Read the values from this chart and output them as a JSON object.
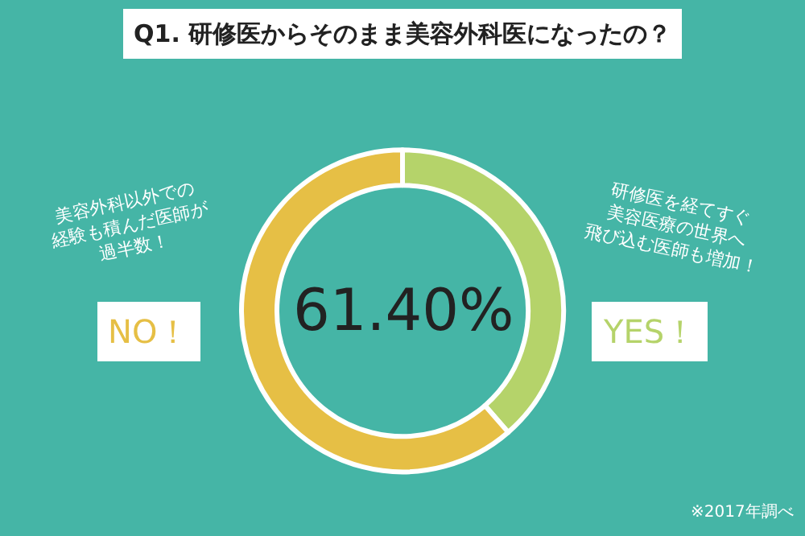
{
  "chart_data": {
    "type": "donut",
    "title": "Q1. 研修医からそのまま美容外科医になったの？",
    "categories": [
      "YES！",
      "NO！"
    ],
    "values": [
      38.6,
      61.4
    ],
    "colors": [
      "#b5d36a",
      "#e6bf45"
    ],
    "annotations": [
      "61.40%",
      "美容外科以外での\n経験も積んだ医師が\n過半数！",
      "研修医を経てすぐ\n美容医療の世界へ\n飛び込む医師も増加！",
      "※2017年調べ"
    ]
  }
}
